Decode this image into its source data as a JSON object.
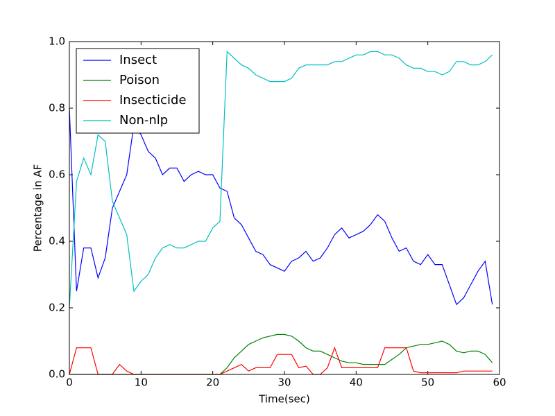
{
  "chart_data": {
    "type": "line",
    "xlabel": "Time(sec)",
    "ylabel": "Percentage in AF",
    "x": [
      0,
      1,
      2,
      3,
      4,
      5,
      6,
      7,
      8,
      9,
      10,
      11,
      12,
      13,
      14,
      15,
      16,
      17,
      18,
      19,
      20,
      21,
      22,
      23,
      24,
      25,
      26,
      27,
      28,
      29,
      30,
      31,
      32,
      33,
      34,
      35,
      36,
      37,
      38,
      39,
      40,
      41,
      42,
      43,
      44,
      45,
      46,
      47,
      48,
      49,
      50,
      51,
      52,
      53,
      54,
      55,
      56,
      57,
      58,
      59
    ],
    "series": [
      {
        "name": "Insect",
        "color": "#0000ff",
        "values": [
          0.8,
          0.25,
          0.38,
          0.38,
          0.29,
          0.35,
          0.5,
          0.55,
          0.6,
          0.75,
          0.72,
          0.67,
          0.65,
          0.6,
          0.62,
          0.62,
          0.58,
          0.6,
          0.61,
          0.6,
          0.6,
          0.56,
          0.55,
          0.47,
          0.45,
          0.41,
          0.37,
          0.36,
          0.33,
          0.32,
          0.31,
          0.34,
          0.35,
          0.37,
          0.34,
          0.35,
          0.38,
          0.42,
          0.44,
          0.41,
          0.42,
          0.43,
          0.45,
          0.48,
          0.46,
          0.41,
          0.37,
          0.38,
          0.34,
          0.33,
          0.36,
          0.33,
          0.33,
          0.27,
          0.21,
          0.23,
          0.27,
          0.31,
          0.34,
          0.21
        ]
      },
      {
        "name": "Poison",
        "color": "#008000",
        "values": [
          0,
          0,
          0,
          0,
          0,
          0,
          0,
          0,
          0,
          0,
          0,
          0,
          0,
          0,
          0,
          0,
          0,
          0,
          0,
          0,
          0,
          0,
          0.02,
          0.05,
          0.07,
          0.09,
          0.1,
          0.11,
          0.115,
          0.12,
          0.12,
          0.115,
          0.1,
          0.08,
          0.07,
          0.07,
          0.06,
          0.05,
          0.04,
          0.035,
          0.035,
          0.03,
          0.03,
          0.03,
          0.03,
          0.045,
          0.06,
          0.08,
          0.085,
          0.09,
          0.09,
          0.095,
          0.1,
          0.09,
          0.07,
          0.065,
          0.07,
          0.07,
          0.06,
          0.035
        ]
      },
      {
        "name": "Insecticide",
        "color": "#ff0000",
        "values": [
          0,
          0.08,
          0.08,
          0.08,
          0,
          0,
          0,
          0.03,
          0.01,
          0,
          0,
          0,
          0,
          0,
          0,
          0,
          0,
          0,
          0,
          0,
          0,
          0,
          0.01,
          0.02,
          0.03,
          0.01,
          0.02,
          0.02,
          0.02,
          0.06,
          0.06,
          0.06,
          0.02,
          0.025,
          0,
          0,
          0.02,
          0.08,
          0.02,
          0.02,
          0.02,
          0.02,
          0.02,
          0.02,
          0.08,
          0.08,
          0.08,
          0.08,
          0.01,
          0.005,
          0.005,
          0.005,
          0.005,
          0.005,
          0.005,
          0.01,
          0.01,
          0.01,
          0.01,
          0.01
        ]
      },
      {
        "name": "Non-nlp",
        "color": "#00bfbf",
        "values": [
          0.2,
          0.58,
          0.65,
          0.6,
          0.72,
          0.7,
          0.52,
          0.47,
          0.42,
          0.25,
          0.28,
          0.3,
          0.35,
          0.38,
          0.39,
          0.38,
          0.38,
          0.39,
          0.4,
          0.4,
          0.44,
          0.46,
          0.97,
          0.95,
          0.93,
          0.92,
          0.9,
          0.89,
          0.88,
          0.88,
          0.88,
          0.89,
          0.92,
          0.93,
          0.93,
          0.93,
          0.93,
          0.94,
          0.94,
          0.95,
          0.96,
          0.96,
          0.97,
          0.97,
          0.96,
          0.96,
          0.95,
          0.93,
          0.92,
          0.92,
          0.91,
          0.91,
          0.9,
          0.91,
          0.94,
          0.94,
          0.93,
          0.93,
          0.94,
          0.96
        ]
      }
    ],
    "xlim": [
      0,
      60
    ],
    "xticks": [
      0,
      10,
      20,
      30,
      40,
      50,
      60
    ],
    "ylim": [
      0,
      1
    ],
    "yticks": [
      {
        "value": 0,
        "label": "0.0"
      },
      {
        "value": 0.2,
        "label": "0.2"
      },
      {
        "value": 0.4,
        "label": "0.4"
      },
      {
        "value": 0.6,
        "label": "0.6"
      },
      {
        "value": 0.8,
        "label": "0.8"
      },
      {
        "value": 1,
        "label": "1.0"
      }
    ],
    "legend": "upper left"
  }
}
